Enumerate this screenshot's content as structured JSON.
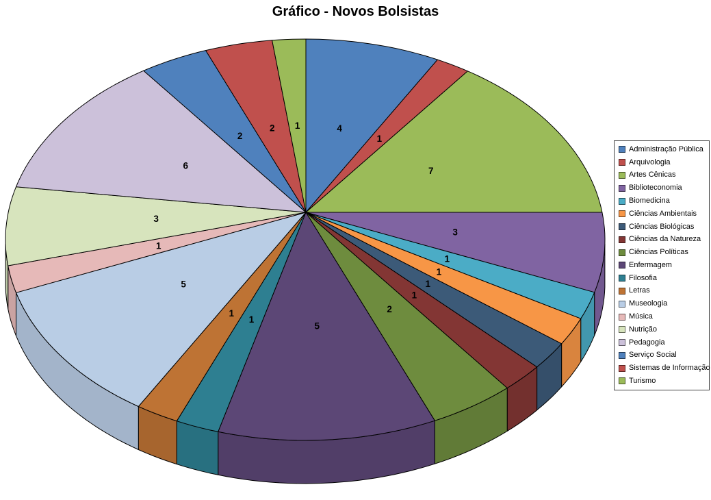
{
  "page": {
    "background": "#ffffff"
  },
  "chart_data": {
    "type": "pie",
    "three_d": true,
    "title": "Gráfico - Novos Bolsistas",
    "total": 48,
    "legend_position": "right",
    "data_labels": "value",
    "start_angle_deg": -90,
    "direction": "clockwise",
    "slices": [
      {
        "label": "Administração Pública",
        "value": 4,
        "color": "#4F81BD"
      },
      {
        "label": "Arquivologia",
        "value": 1,
        "color": "#C0504D"
      },
      {
        "label": "Artes Cênicas",
        "value": 7,
        "color": "#9BBB59"
      },
      {
        "label": "Biblioteconomia",
        "value": 3,
        "color": "#8064A2"
      },
      {
        "label": "Biomedicina",
        "value": 1,
        "color": "#4BACC6"
      },
      {
        "label": "Ciências Ambientais",
        "value": 1,
        "color": "#F79646"
      },
      {
        "label": "Ciências Biológicas",
        "value": 1,
        "color": "#3C5A78"
      },
      {
        "label": "Ciências da Natureza",
        "value": 1,
        "color": "#833634"
      },
      {
        "label": "Ciências Políticas",
        "value": 2,
        "color": "#6E8C3E"
      },
      {
        "label": "Enfermagem",
        "value": 5,
        "color": "#5C4776"
      },
      {
        "label": "Filosofia",
        "value": 1,
        "color": "#2E7F91"
      },
      {
        "label": "Letras",
        "value": 1,
        "color": "#BE7334"
      },
      {
        "label": "Museologia",
        "value": 5,
        "color": "#B9CDE5"
      },
      {
        "label": "Música",
        "value": 1,
        "color": "#E6B9B8"
      },
      {
        "label": "Nutrição",
        "value": 3,
        "color": "#D7E4BD"
      },
      {
        "label": "Pedagogia",
        "value": 6,
        "color": "#CCC1DA"
      },
      {
        "label": "Serviço Social",
        "value": 2,
        "color": "#4F81BD"
      },
      {
        "label": "Sistemas de Informação",
        "value": 2,
        "color": "#C0504D"
      },
      {
        "label": "Turismo",
        "value": 1,
        "color": "#9BBB59"
      }
    ]
  }
}
